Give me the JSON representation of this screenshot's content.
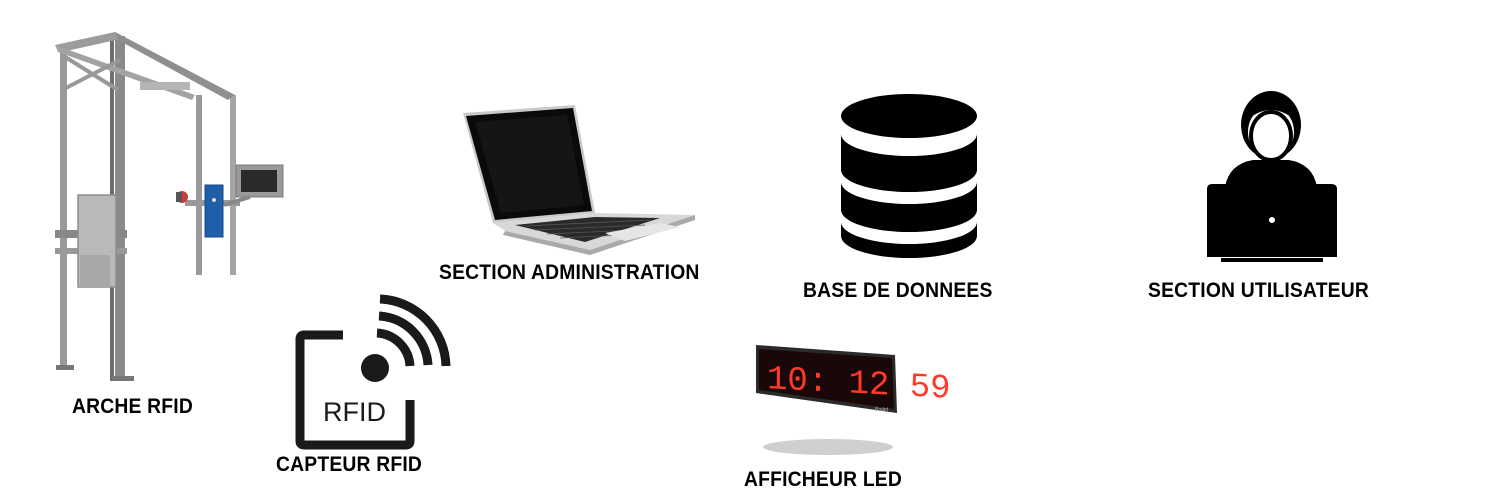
{
  "nodes": {
    "arche": {
      "label": "ARCHE RFID",
      "icon": "rfid-arch-icon"
    },
    "capteur": {
      "label": "CAPTEUR RFID",
      "icon": "rfid-sensor-icon",
      "icon_text": "RFID"
    },
    "admin": {
      "label": "SECTION ADMINISTRATION",
      "icon": "laptop-icon"
    },
    "db": {
      "label": "BASE DE DONNEES",
      "icon": "database-icon"
    },
    "user": {
      "label": "SECTION UTILISATEUR",
      "icon": "user-laptop-icon"
    },
    "led": {
      "label": "AFFICHEUR LED",
      "icon": "led-display-icon",
      "display_text": "10: 12 59",
      "brand": "Bodet"
    }
  },
  "colors": {
    "led_red": "#ff3b28",
    "frame_gray": "#8a8a8a",
    "accent_blue": "#1f5ea8"
  }
}
